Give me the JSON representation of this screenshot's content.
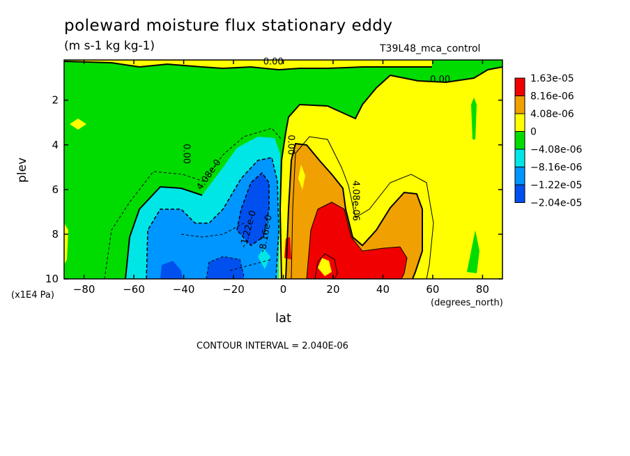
{
  "chart_data": {
    "type": "heatmap",
    "title": "poleward moisture flux stationary eddy",
    "subtitle": "(m s-1 kg kg-1)",
    "run_id": "T39L48_mca_control",
    "xlabel": "lat",
    "xunits": "(degrees_north)",
    "ylabel": "plev",
    "yunits": "(x1E4 Pa)",
    "xlim": [
      -88,
      88
    ],
    "ylim": [
      10,
      0.2
    ],
    "x_ticks": [
      -80,
      -60,
      -40,
      -20,
      0,
      20,
      40,
      60,
      80
    ],
    "y_ticks": [
      2,
      4,
      6,
      8,
      10
    ],
    "contour_interval_label": "CONTOUR INTERVAL = 2.040E-06",
    "colorbar": {
      "labels": [
        "1.63e-05",
        "8.16e-06",
        "4.08e-06",
        "0",
        "-4.08e-06",
        "-8.16e-06",
        "-1.22e-05",
        "-2.04e-05"
      ],
      "colors": [
        "#f00000",
        "#f0a000",
        "#ffff00",
        "#00dc00",
        "#00e6e6",
        "#0096ff",
        "#0050f0"
      ]
    },
    "contour_labels": [
      {
        "text": "0.00",
        "lat": -4,
        "plev": 0.4
      },
      {
        "text": "0.00",
        "lat": 63,
        "plev": 1.2
      },
      {
        "text": "0.00",
        "lat": -40,
        "plev": 4.4,
        "rotate": 90
      },
      {
        "text": "4.08e-0",
        "lat": -29,
        "plev": 5.4,
        "rotate": -55
      },
      {
        "text": "-1.22e-0",
        "lat": -13,
        "plev": 7.8,
        "rotate": -75
      },
      {
        "text": "-8.16e-0",
        "lat": -6,
        "plev": 8.0,
        "rotate": -80
      },
      {
        "text": "0.00",
        "lat": 2,
        "plev": 4.0,
        "rotate": 90
      },
      {
        "text": "4.08e-06",
        "lat": 28,
        "plev": 6.5,
        "rotate": 90
      }
    ]
  }
}
